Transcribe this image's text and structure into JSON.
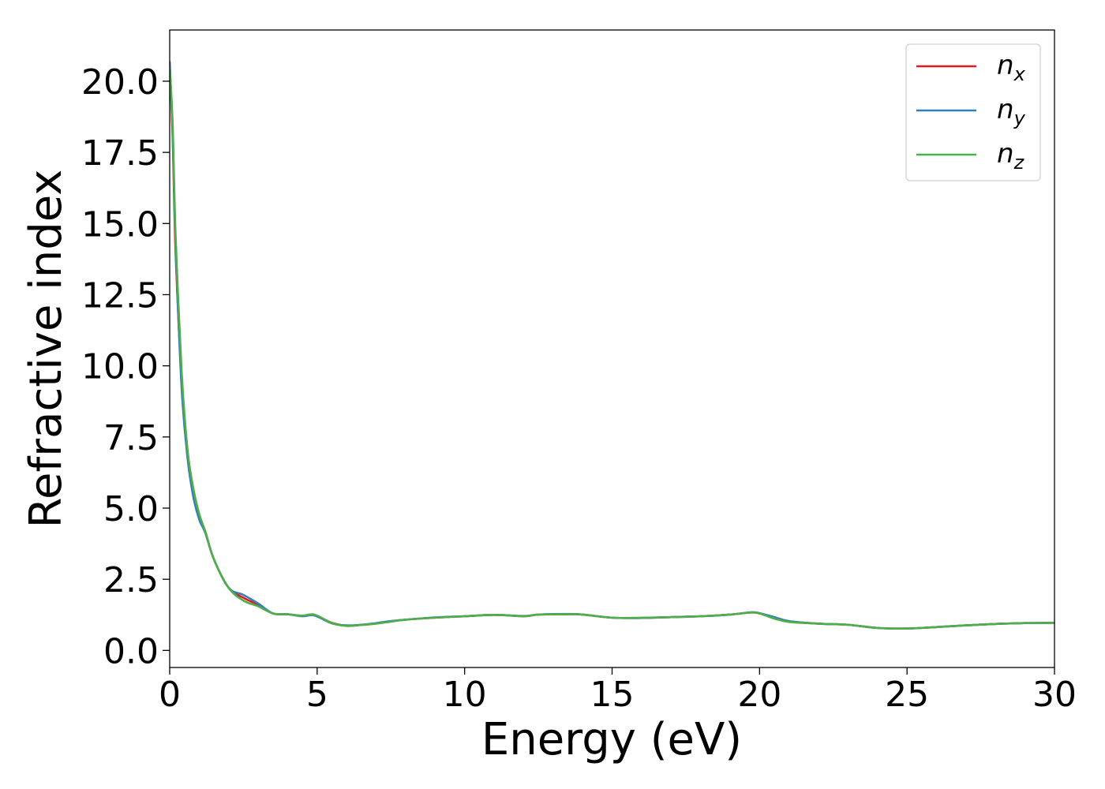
{
  "chart_data": {
    "type": "line",
    "title": "",
    "xlabel": "Energy (eV)",
    "ylabel": "Refractive index",
    "xlim": [
      0,
      30
    ],
    "ylim": [
      -0.6,
      21.8
    ],
    "x_ticks": [
      "0",
      "5",
      "10",
      "15",
      "20",
      "25",
      "30"
    ],
    "y_ticks": [
      "0.0",
      "2.5",
      "5.0",
      "7.5",
      "10.0",
      "12.5",
      "15.0",
      "17.5",
      "20.0"
    ],
    "grid": false,
    "legend_position": "top-right",
    "series": [
      {
        "name": "n",
        "subscript": "x",
        "color": "#e41a1c",
        "x": [
          0,
          0.1,
          0.2,
          0.4,
          0.6,
          0.8,
          1.0,
          1.2,
          1.5,
          2.0,
          2.5,
          3.0,
          3.5,
          4.0,
          4.5,
          4.9,
          5.5,
          6.0,
          6.5,
          7.0,
          7.5,
          8.0,
          9.0,
          10.0,
          11.0,
          12.0,
          12.5,
          13.5,
          14.0,
          15.0,
          16.0,
          17.0,
          18.0,
          19.0,
          19.7,
          20.0,
          20.5,
          21.0,
          22.0,
          23.0,
          24.0,
          25.0,
          26.0,
          27.0,
          28.0,
          29.0,
          30.0
        ],
        "values": [
          20.6,
          18.0,
          14.0,
          9.6,
          7.0,
          5.6,
          4.7,
          4.2,
          3.2,
          2.2,
          1.85,
          1.6,
          1.3,
          1.27,
          1.22,
          1.25,
          0.97,
          0.87,
          0.9,
          0.95,
          1.02,
          1.08,
          1.15,
          1.2,
          1.25,
          1.2,
          1.26,
          1.27,
          1.26,
          1.15,
          1.14,
          1.17,
          1.2,
          1.26,
          1.33,
          1.3,
          1.15,
          1.02,
          0.94,
          0.9,
          0.79,
          0.77,
          0.82,
          0.88,
          0.93,
          0.96,
          0.97
        ]
      },
      {
        "name": "n",
        "subscript": "y",
        "color": "#377eb8",
        "x": [
          0,
          0.1,
          0.2,
          0.4,
          0.6,
          0.8,
          1.0,
          1.2,
          1.5,
          2.0,
          2.5,
          3.0,
          3.5,
          4.0,
          4.5,
          4.9,
          5.5,
          6.0,
          6.5,
          7.0,
          7.5,
          8.0,
          9.0,
          10.0,
          11.0,
          12.0,
          12.5,
          13.5,
          14.0,
          15.0,
          16.0,
          17.0,
          18.0,
          19.0,
          19.7,
          20.0,
          20.5,
          21.0,
          22.0,
          23.0,
          24.0,
          25.0,
          26.0,
          27.0,
          28.0,
          29.0,
          30.0
        ],
        "values": [
          20.7,
          18.2,
          14.3,
          9.3,
          6.8,
          5.4,
          4.6,
          4.15,
          3.2,
          2.2,
          1.95,
          1.65,
          1.3,
          1.27,
          1.2,
          1.23,
          0.95,
          0.88,
          0.9,
          0.96,
          1.03,
          1.08,
          1.16,
          1.2,
          1.25,
          1.21,
          1.26,
          1.28,
          1.26,
          1.15,
          1.14,
          1.17,
          1.2,
          1.26,
          1.34,
          1.31,
          1.17,
          1.03,
          0.94,
          0.9,
          0.79,
          0.77,
          0.82,
          0.88,
          0.93,
          0.96,
          0.97
        ]
      },
      {
        "name": "n",
        "subscript": "z",
        "color": "#4daf4a",
        "x": [
          0,
          0.1,
          0.2,
          0.4,
          0.6,
          0.8,
          1.0,
          1.2,
          1.5,
          2.0,
          2.5,
          3.0,
          3.5,
          4.0,
          4.5,
          4.9,
          5.5,
          6.0,
          6.5,
          7.0,
          7.5,
          8.0,
          9.0,
          10.0,
          11.0,
          12.0,
          12.5,
          13.5,
          14.0,
          15.0,
          16.0,
          17.0,
          18.0,
          19.0,
          19.7,
          20.0,
          20.5,
          21.0,
          22.0,
          23.0,
          24.0,
          25.0,
          26.0,
          27.0,
          28.0,
          29.0,
          30.0
        ],
        "values": [
          20.5,
          18.5,
          14.6,
          9.9,
          7.1,
          5.7,
          4.8,
          4.2,
          3.2,
          2.2,
          1.75,
          1.55,
          1.3,
          1.27,
          1.22,
          1.26,
          0.96,
          0.86,
          0.89,
          0.94,
          1.01,
          1.08,
          1.15,
          1.2,
          1.25,
          1.2,
          1.26,
          1.27,
          1.26,
          1.15,
          1.15,
          1.17,
          1.2,
          1.26,
          1.33,
          1.3,
          1.12,
          1.0,
          0.94,
          0.9,
          0.79,
          0.77,
          0.82,
          0.88,
          0.93,
          0.96,
          0.97
        ]
      }
    ]
  }
}
